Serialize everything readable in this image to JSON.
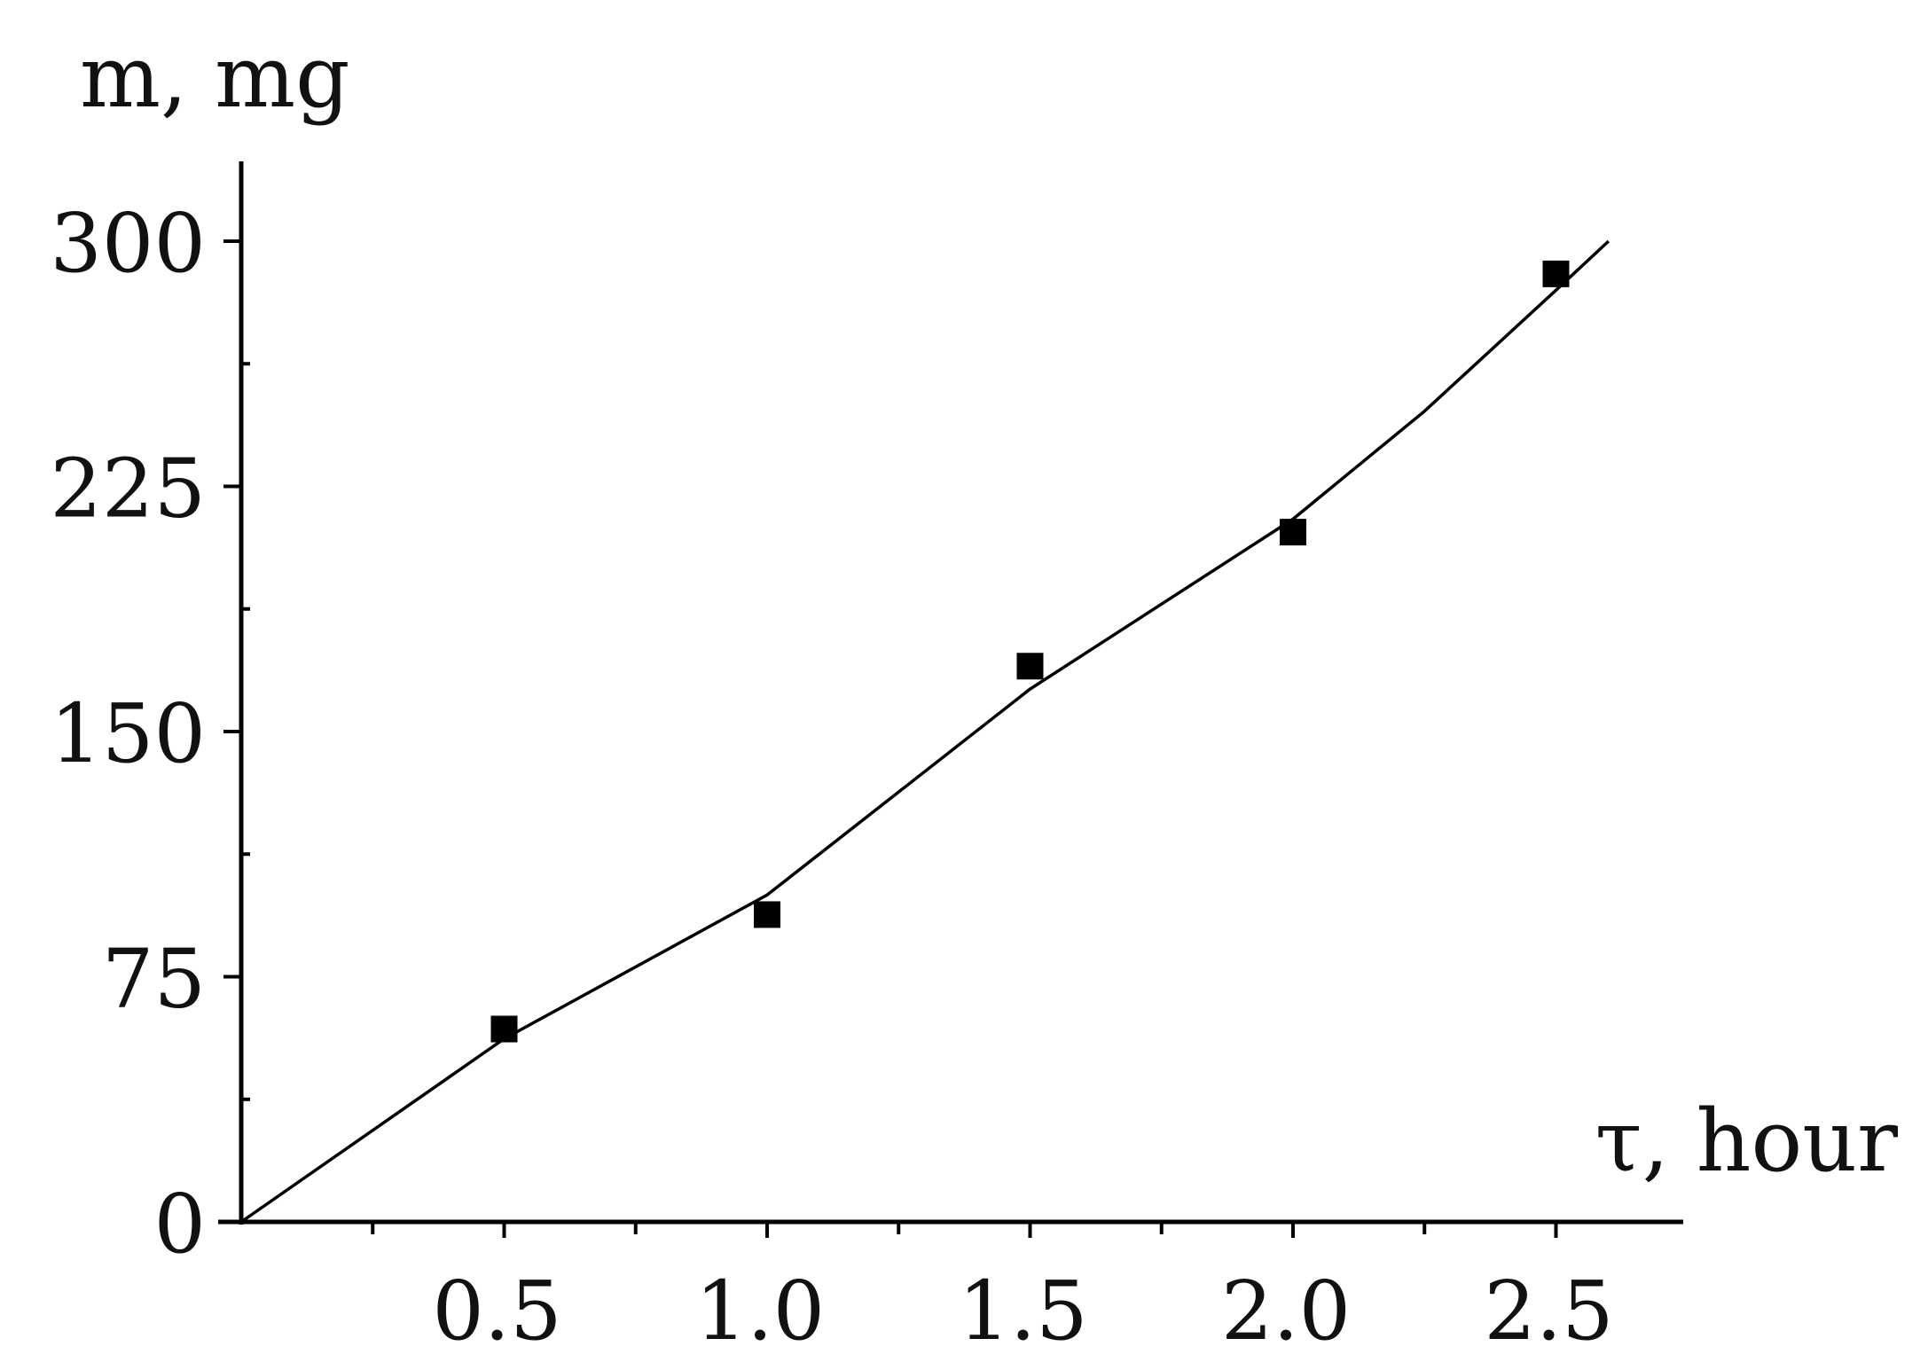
{
  "chart_data": {
    "type": "scatter",
    "title": "",
    "xlabel": "τ, hour",
    "ylabel": "m, mg",
    "xlim": [
      0,
      2.55
    ],
    "ylim": [
      0,
      300
    ],
    "x_ticks": [
      0.5,
      1.0,
      1.5,
      2.0,
      2.5
    ],
    "x_tick_labels": [
      "0.5",
      "1.0",
      "1.5",
      "2.0",
      "2.5"
    ],
    "x_minor_ticks": [
      0.25,
      0.75,
      1.25,
      1.75,
      2.25
    ],
    "y_ticks": [
      0,
      75,
      150,
      225,
      300
    ],
    "y_tick_labels": [
      "0",
      "75",
      "150",
      "225",
      "300"
    ],
    "y_minor_ticks": [
      37.5,
      112.5,
      187.5,
      262.5
    ],
    "grid": false,
    "series": [
      {
        "kind": "markers",
        "marker": "square",
        "color": "#000000",
        "x": [
          0.5,
          1.0,
          1.5,
          2.0,
          2.5
        ],
        "y": [
          59,
          94,
          170,
          211,
          290
        ]
      },
      {
        "kind": "line",
        "color": "#000000",
        "x": [
          0.0,
          0.5,
          1.0,
          1.5,
          2.0,
          2.25,
          2.5,
          2.6
        ],
        "y": [
          0,
          56,
          100,
          163,
          215,
          248,
          285,
          300
        ]
      }
    ]
  }
}
